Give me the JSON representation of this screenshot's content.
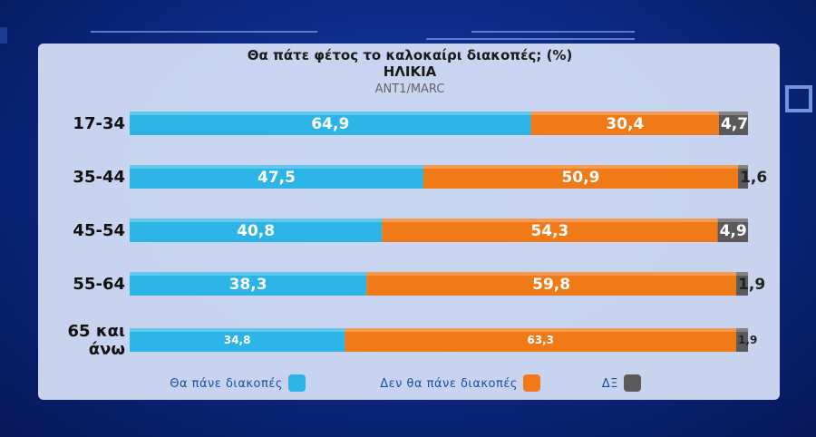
{
  "chart_data": {
    "type": "bar",
    "orientation": "horizontal",
    "stacked": true,
    "title": "Θα πάτε φέτος το καλοκαίρι διακοπές; (%)",
    "subtitle": "ΗΛΙΚΙΑ",
    "source": "ANT1/MARC",
    "categories": [
      {
        "lines": [
          "17-34"
        ]
      },
      {
        "lines": [
          "35-44"
        ]
      },
      {
        "lines": [
          "45-54"
        ]
      },
      {
        "lines": [
          "55-64"
        ]
      },
      {
        "lines": [
          "65 και",
          "άνω"
        ]
      }
    ],
    "value_labels": [
      [
        "64,9",
        "30,4",
        "4,7"
      ],
      [
        "47,5",
        "50,9",
        "1,6"
      ],
      [
        "40,8",
        "54,3",
        "4,9"
      ],
      [
        "38,3",
        "59,8",
        "1,9"
      ],
      [
        "34,8",
        "63,3",
        "1,9"
      ]
    ],
    "series": [
      {
        "name": "Θα πάνε διακοπές",
        "color": "#2cb4e6",
        "values": [
          64.9,
          47.5,
          40.8,
          38.3,
          34.8
        ]
      },
      {
        "name": "Δεν θα πάνε διακοπές",
        "color": "#f07a18",
        "values": [
          30.4,
          50.9,
          54.3,
          59.8,
          63.3
        ]
      },
      {
        "name": "ΔΞ",
        "color": "#5a5a5a",
        "values": [
          4.7,
          1.6,
          4.9,
          1.9,
          1.9
        ]
      }
    ],
    "xlim": [
      0,
      100
    ],
    "grid": false,
    "legend": "bottom"
  }
}
